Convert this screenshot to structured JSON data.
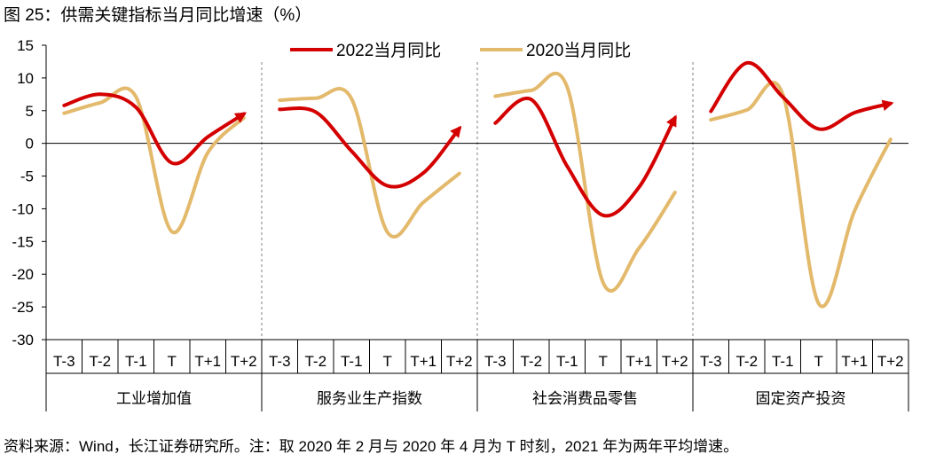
{
  "title": "图 25：供需关键指标当月同比增速（%）",
  "source_note": "资料来源：Wind，长江证券研究所。注：取 2020 年 2 月与 2020 年 4 月为 T 时刻，2021 年为两年平均增速。",
  "chart_data": {
    "type": "line",
    "title": "图 25：供需关键指标当月同比增速（%）",
    "xlabel": "",
    "ylabel": "",
    "ylim": [
      -30,
      15
    ],
    "yticks": [
      "15",
      "10",
      "5",
      "0",
      "-5",
      "-10",
      "-15",
      "-20",
      "-25",
      "-30"
    ],
    "ytick_values": [
      15,
      10,
      5,
      0,
      -5,
      -10,
      -15,
      -20,
      -25,
      -30
    ],
    "colors": {
      "series_2022": "#d40000",
      "series_2020": "#e3b96b",
      "axis": "#000000",
      "divider": "#808080"
    },
    "x_categories": [
      "T-3",
      "T-2",
      "T-1",
      "T",
      "T+1",
      "T+2"
    ],
    "groups": [
      "工业增加值",
      "服务业生产指数",
      "社会消费品零售",
      "固定资产投资"
    ],
    "legend": [
      "2022当月同比",
      "2020当月同比"
    ],
    "legend_position": "top-center",
    "series": [
      {
        "name": "2022当月同比",
        "arrow_end": true,
        "values": [
          [
            5.8,
            7.5,
            5.5,
            -3.0,
            1.0,
            4.5
          ],
          [
            5.2,
            4.8,
            -1.2,
            -6.5,
            -4.5,
            2.3
          ],
          [
            3.1,
            6.7,
            -3.5,
            -11.0,
            -6.7,
            3.9
          ],
          [
            4.9,
            12.3,
            7.1,
            2.2,
            4.7,
            6.1
          ]
        ]
      },
      {
        "name": "2020当月同比",
        "arrow_end": false,
        "values": [
          [
            4.6,
            6.2,
            7.1,
            -13.5,
            -1.4,
            3.9
          ],
          [
            6.6,
            6.9,
            6.8,
            -13.6,
            -9.0,
            -4.6
          ],
          [
            7.2,
            8.1,
            8.6,
            -21.3,
            -16.0,
            -7.5
          ],
          [
            3.6,
            5.1,
            7.5,
            -24.5,
            -10.3,
            0.6
          ]
        ]
      }
    ]
  }
}
